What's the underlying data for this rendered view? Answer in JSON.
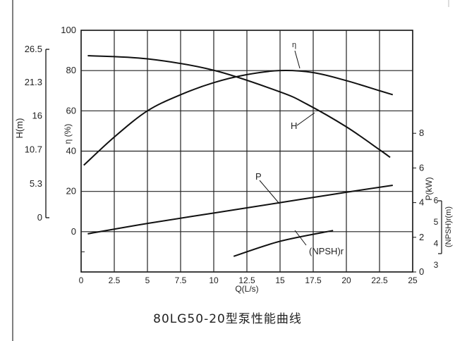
{
  "figure_caption": "80LG50-20型泵性能曲线",
  "chart_data": {
    "type": "line",
    "title": "80LG50-20型泵性能曲线",
    "xlabel": "Q(L/s)",
    "x_ticks": [
      "0",
      "2.5",
      "5",
      "7.5",
      "10",
      "12.5",
      "15",
      "17.5",
      "20",
      "22.5",
      "25"
    ],
    "xlim": [
      0,
      25
    ],
    "grid": true,
    "axes": {
      "eta": {
        "label": "η (%)",
        "ticks": [
          "100",
          "80",
          "60",
          "40",
          "20",
          "0"
        ],
        "range": [
          -20,
          100
        ]
      },
      "H": {
        "label": "H(m)",
        "ticks": [
          "26.5",
          "21.3",
          "16",
          "10.7",
          "5.3",
          "0"
        ],
        "range": [
          0,
          26.5
        ]
      },
      "P": {
        "label": "P(kW)",
        "ticks": [
          "8",
          "6",
          "4",
          "2",
          "0"
        ],
        "range": [
          0,
          10
        ]
      },
      "NPSH": {
        "label": "(NPSH)r(m)",
        "ticks": [
          "6",
          "5",
          "4",
          "3"
        ],
        "range": [
          3,
          6
        ]
      }
    },
    "series": [
      {
        "name": "H",
        "axis": "H",
        "x": [
          0.5,
          5,
          10,
          15,
          17,
          20,
          22.5,
          23.3
        ],
        "y": [
          25.5,
          25,
          23.2,
          19.8,
          17.9,
          14.3,
          10.7,
          9.5
        ]
      },
      {
        "name": "η",
        "axis": "eta",
        "x": [
          0.2,
          2.5,
          5,
          7.5,
          10,
          12.5,
          15,
          17.5,
          20,
          22.5,
          23.5
        ],
        "y": [
          33,
          47,
          60,
          68,
          74,
          78,
          80,
          79,
          75,
          70,
          68
        ]
      },
      {
        "name": "P",
        "axis": "P",
        "x": [
          0.5,
          5,
          10,
          15,
          20,
          23.5
        ],
        "y": [
          2.2,
          2.8,
          3.4,
          4.0,
          4.6,
          5.0
        ]
      },
      {
        "name": "(NPSH)r",
        "axis": "NPSH",
        "x": [
          11.5,
          15,
          19
        ],
        "y": [
          3.4,
          4.1,
          4.6
        ]
      }
    ]
  }
}
